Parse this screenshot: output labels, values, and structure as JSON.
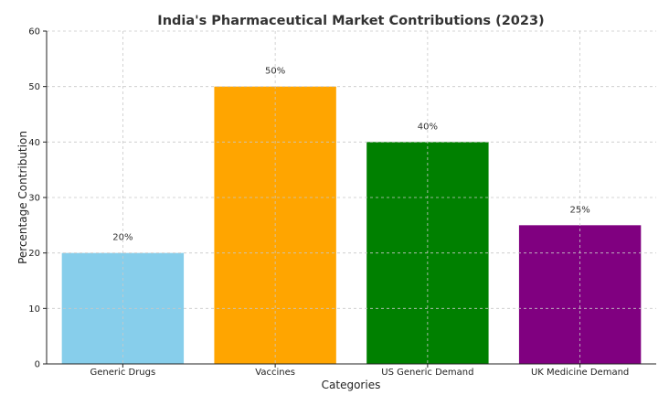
{
  "chart_data": {
    "type": "bar",
    "title": "India's Pharmaceutical Market Contributions (2023)",
    "xlabel": "Categories",
    "ylabel": "Percentage Contribution",
    "categories": [
      "Generic Drugs",
      "Vaccines",
      "US Generic Demand",
      "UK Medicine Demand"
    ],
    "values": [
      20,
      50,
      40,
      25
    ],
    "data_labels": [
      "20%",
      "50%",
      "40%",
      "25%"
    ],
    "colors": [
      "#87ceeb",
      "#ffa500",
      "#008000",
      "#800080"
    ],
    "ylim": [
      0,
      60
    ],
    "yticks": [
      "0",
      "10",
      "20",
      "30",
      "40",
      "50",
      "60"
    ],
    "grid": true
  }
}
